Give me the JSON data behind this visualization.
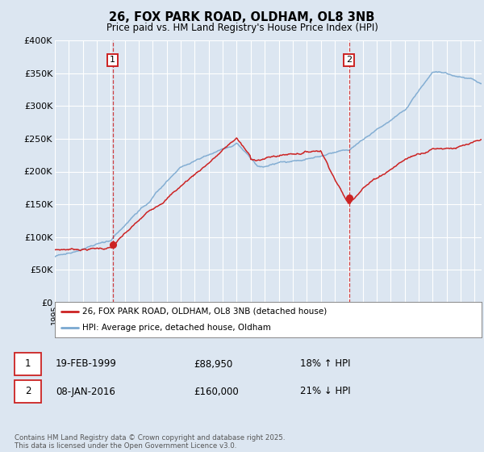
{
  "title": "26, FOX PARK ROAD, OLDHAM, OL8 3NB",
  "subtitle": "Price paid vs. HM Land Registry's House Price Index (HPI)",
  "bg_color": "#dce6f1",
  "plot_bg_color": "#dce6f1",
  "grid_color": "#ffffff",
  "y_ticks": [
    0,
    50000,
    100000,
    150000,
    200000,
    250000,
    300000,
    350000,
    400000
  ],
  "y_tick_labels": [
    "£0",
    "£50K",
    "£100K",
    "£150K",
    "£200K",
    "£250K",
    "£300K",
    "£350K",
    "£400K"
  ],
  "x_start_year": 1995,
  "x_end_year": 2025,
  "sale1_date": 1999.13,
  "sale1_price": 88950,
  "sale2_date": 2016.03,
  "sale2_price": 160000,
  "legend_line1": "26, FOX PARK ROAD, OLDHAM, OL8 3NB (detached house)",
  "legend_line2": "HPI: Average price, detached house, Oldham",
  "footer": "Contains HM Land Registry data © Crown copyright and database right 2025.\nThis data is licensed under the Open Government Licence v3.0.",
  "red_color": "#cc2222",
  "blue_color": "#7aa8d0"
}
